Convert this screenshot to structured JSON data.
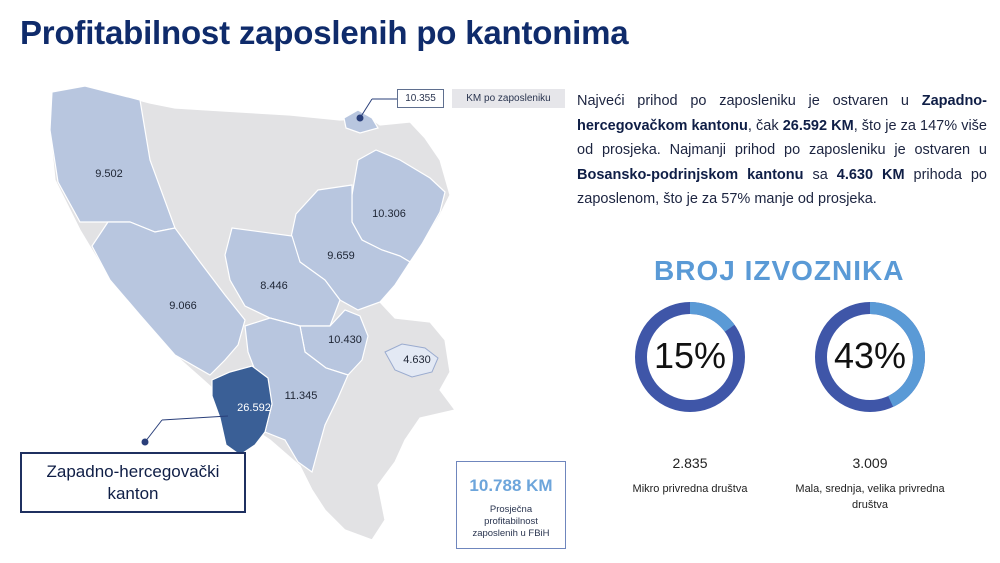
{
  "title": "Profitabilnost zaposlenih po kantonima",
  "colors": {
    "title": "#0f2b6b",
    "accent_light": "#6da5db",
    "map_background": "#e2e2e4",
    "canton_mid": "#b8c6df",
    "canton_dark": "#3a5f96",
    "donut_dark": "#3f56a8",
    "donut_light": "#5a9ad6"
  },
  "map": {
    "legend": {
      "value": "10.355",
      "label": "KM po zaposleniku"
    },
    "canton_values": [
      "9.502",
      "10.306",
      "9.659",
      "8.446",
      "9.066",
      "10.430",
      "4.630",
      "11.345",
      "26.592"
    ],
    "callout": [
      "Zapadno-hercegovački",
      "kanton"
    ],
    "average": {
      "value": "10.788 KM",
      "caption": "Prosječna profitabilnost zaposlenih u FBiH"
    }
  },
  "description": {
    "p1": "Najveći prihod po zaposleniku je ostvaren u ",
    "b1": "Zapadno-hercegovačkom kantonu",
    "p2": ", čak ",
    "b2": "26.592 KM",
    "p3": ", što je za 147% više od prosjeka. Najmanji prihod po zaposleniku je ostvaren u ",
    "b3": "Bosansko-podrinjskom kantonu",
    "p4": " sa ",
    "b4": "4.630 KM",
    "p5": " prihoda po zaposlenom, što je za 57% manje od prosjeka."
  },
  "exporters": {
    "title": "BROJ IZVOZNIKA",
    "items": [
      {
        "percent": "15%",
        "fraction": 0.15,
        "count": "2.835",
        "label": "Mikro privredna društva"
      },
      {
        "percent": "43%",
        "fraction": 0.43,
        "count": "3.009",
        "label": "Mala, srednja, velika privredna društva"
      }
    ]
  }
}
